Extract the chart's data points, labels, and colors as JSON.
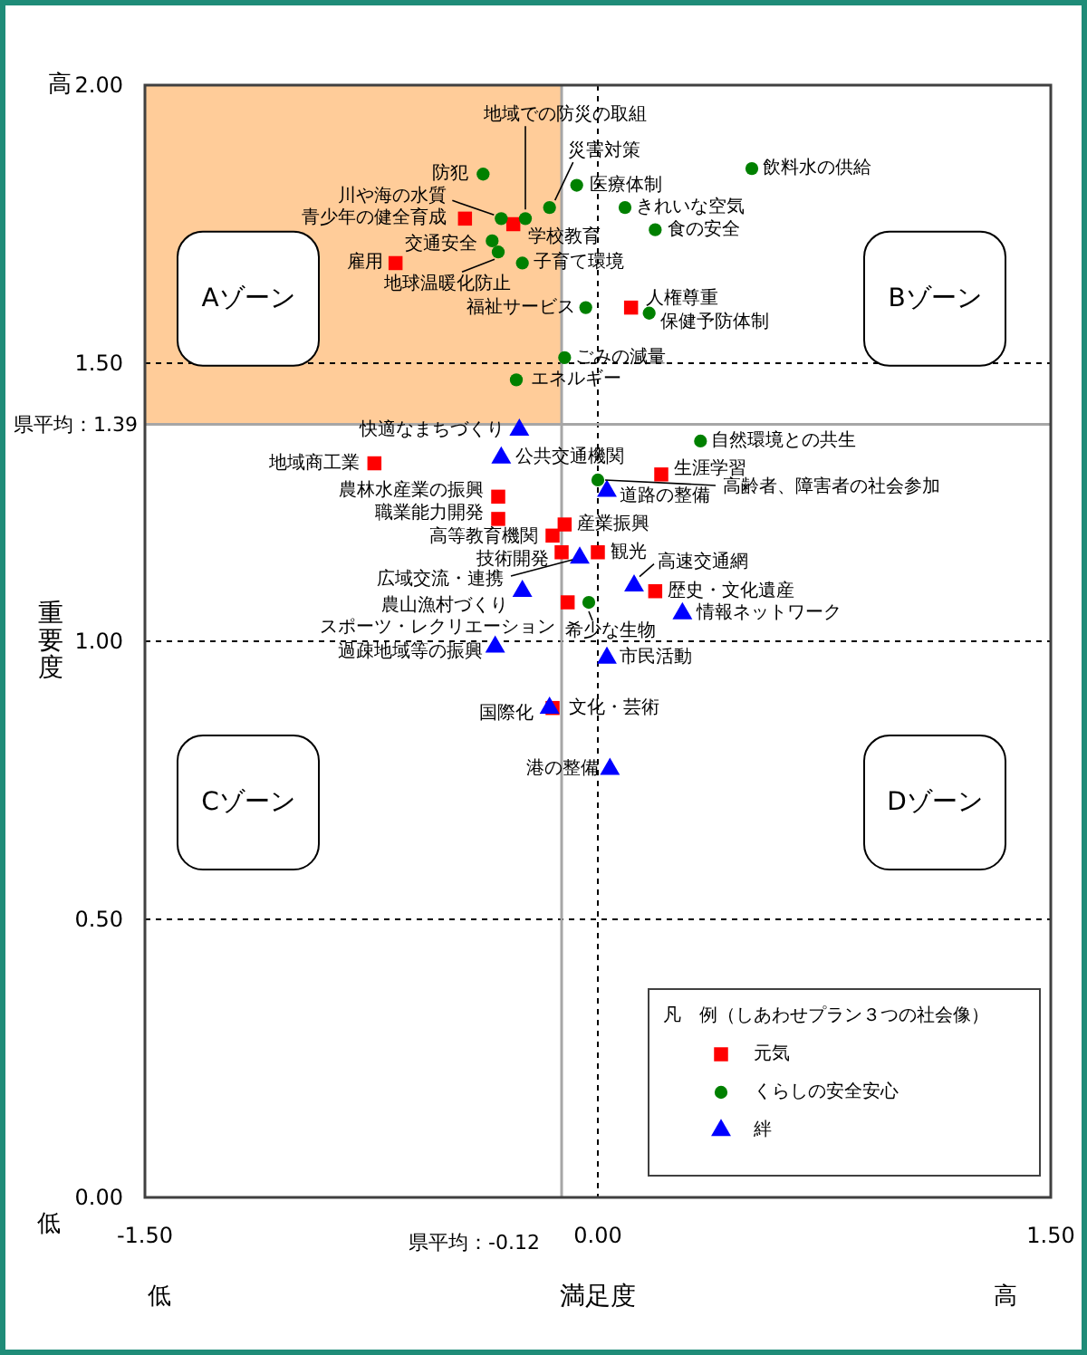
{
  "chart_data": {
    "type": "scatter",
    "xlabel": "満足度",
    "ylabel": "重要度",
    "legend_title": "凡　例（しあわせプラン３つの社会像）",
    "legend": "bottom right",
    "grid": true,
    "xlim": [
      -1.5,
      1.5
    ],
    "ylim": [
      0,
      2
    ],
    "xticks": [
      {
        "value": -1.5,
        "label": "-1.50"
      },
      {
        "value": 0,
        "label": "0.00"
      },
      {
        "value": 1.5,
        "label": "1.50"
      }
    ],
    "yticks": [
      {
        "value": 0,
        "label": "0.00"
      },
      {
        "value": 0.5,
        "label": "0.50"
      },
      {
        "value": 1,
        "label": "1.00"
      },
      {
        "value": 1.5,
        "label": "1.50"
      },
      {
        "value": 2,
        "label": "2.00"
      }
    ],
    "ref_lines": [
      {
        "axis": "y",
        "value": 1.39,
        "label": "県平均：1.39",
        "color": "#a6a6a6"
      },
      {
        "axis": "x",
        "value": -0.12,
        "label": "県平均：-0.12",
        "color": "#a6a6a6"
      }
    ],
    "bands": [
      {
        "axis": "x",
        "from": -1.5,
        "to": -0.12,
        "color": "#ffcc99"
      }
    ],
    "series": [
      {
        "name": "元気",
        "color": "#ff0000",
        "marker": "square",
        "x": [
          -0.44,
          -0.28,
          -0.67,
          0.11,
          -0.74,
          0.21,
          -0.33,
          -0.33,
          -0.11,
          -0.15,
          -0.12,
          0.0,
          0.19,
          -0.1,
          -0.15
        ],
        "values": [
          1.76,
          1.75,
          1.68,
          1.6,
          1.32,
          1.3,
          1.26,
          1.22,
          1.21,
          1.19,
          1.16,
          1.16,
          1.09,
          1.07,
          0.88
        ]
      },
      {
        "name": "くらしの安全安心",
        "color": "#008000",
        "marker": "circle",
        "x": [
          -0.38,
          0.51,
          -0.07,
          -0.16,
          0.09,
          -0.24,
          -0.32,
          0.19,
          -0.35,
          -0.33,
          -0.25,
          -0.04,
          0.17,
          -0.11,
          -0.27,
          0.34,
          0.0,
          -0.03
        ],
        "values": [
          1.84,
          1.85,
          1.82,
          1.78,
          1.78,
          1.76,
          1.76,
          1.74,
          1.72,
          1.7,
          1.68,
          1.6,
          1.59,
          1.51,
          1.47,
          1.36,
          1.29,
          1.07
        ]
      },
      {
        "name": "絆",
        "color": "#0000ff",
        "marker": "triangle",
        "x": [
          -0.26,
          -0.32,
          0.03,
          -0.06,
          0.12,
          -0.25,
          0.28,
          -0.34,
          0.03,
          -0.16,
          0.04
        ],
        "values": [
          1.38,
          1.33,
          1.27,
          1.15,
          1.1,
          1.09,
          1.05,
          0.99,
          0.97,
          0.88,
          0.77
        ]
      }
    ],
    "annotations": [
      "高",
      "Aゾーン",
      "Bゾーン",
      "Cゾーン",
      "Dゾーン",
      "低",
      "低",
      "高",
      {
        "text": "地域での防災の取組",
        "x": -0.24,
        "y": 1.76
      },
      {
        "text": "災害対策",
        "x": -0.16,
        "y": 1.78
      },
      {
        "text": "防犯",
        "x": -0.38,
        "y": 1.84
      },
      {
        "text": "医療体制",
        "x": -0.07,
        "y": 1.82
      },
      {
        "text": "飲料水の供給",
        "x": 0.51,
        "y": 1.85
      },
      {
        "text": "川や海の水質",
        "x": -0.32,
        "y": 1.76
      },
      {
        "text": "きれいな空気",
        "x": 0.09,
        "y": 1.78
      },
      {
        "text": "青少年の健全育成",
        "x": -0.44,
        "y": 1.76
      },
      {
        "text": "学校教育",
        "x": -0.28,
        "y": 1.75
      },
      {
        "text": "食の安全",
        "x": 0.19,
        "y": 1.74
      },
      {
        "text": "交通安全",
        "x": -0.35,
        "y": 1.72
      },
      {
        "text": "雇用",
        "x": -0.67,
        "y": 1.68
      },
      {
        "text": "子育て環境",
        "x": -0.25,
        "y": 1.68
      },
      {
        "text": "地球温暖化防止",
        "x": -0.33,
        "y": 1.7
      },
      {
        "text": "人権尊重",
        "x": 0.11,
        "y": 1.6
      },
      {
        "text": "保健予防体制",
        "x": 0.17,
        "y": 1.59
      },
      {
        "text": "福祉サービス",
        "x": -0.04,
        "y": 1.6
      },
      {
        "text": "ごみの減量",
        "x": -0.11,
        "y": 1.51
      },
      {
        "text": "エネルギー",
        "x": -0.27,
        "y": 1.47
      },
      {
        "text": "快適なまちづくり",
        "x": -0.26,
        "y": 1.38
      },
      {
        "text": "自然環境との共生",
        "x": 0.34,
        "y": 1.36
      },
      {
        "text": "地域商工業",
        "x": -0.74,
        "y": 1.32
      },
      {
        "text": "公共交通機関",
        "x": -0.32,
        "y": 1.33
      },
      {
        "text": "生涯学習",
        "x": 0.21,
        "y": 1.3
      },
      {
        "text": "高齢者、障害者の社会参加",
        "x": 0.0,
        "y": 1.29
      },
      {
        "text": "道路の整備",
        "x": 0.03,
        "y": 1.27
      },
      {
        "text": "農林水産業の振興",
        "x": -0.33,
        "y": 1.26
      },
      {
        "text": "職業能力開発",
        "x": -0.33,
        "y": 1.22
      },
      {
        "text": "産業振興",
        "x": -0.11,
        "y": 1.21
      },
      {
        "text": "高等教育機関",
        "x": -0.15,
        "y": 1.19
      },
      {
        "text": "技術開発",
        "x": -0.12,
        "y": 1.16
      },
      {
        "text": "観光",
        "x": 0.0,
        "y": 1.16
      },
      {
        "text": "広域交流・連携",
        "x": -0.06,
        "y": 1.15
      },
      {
        "text": "高速交通網",
        "x": 0.12,
        "y": 1.1
      },
      {
        "text": "農山漁村づくり",
        "x": -0.25,
        "y": 1.09
      },
      {
        "text": "歴史・文化遺産",
        "x": 0.19,
        "y": 1.09
      },
      {
        "text": "スポーツ・レクリエーション",
        "x": -0.1,
        "y": 1.07
      },
      {
        "text": "情報ネットワーク",
        "x": 0.28,
        "y": 1.05
      },
      {
        "text": "希少な生物",
        "x": -0.03,
        "y": 1.07
      },
      {
        "text": "過疎地域等の振興",
        "x": -0.34,
        "y": 0.99
      },
      {
        "text": "市民活動",
        "x": 0.03,
        "y": 0.97
      },
      {
        "text": "国際化",
        "x": -0.16,
        "y": 0.88
      },
      {
        "text": "文化・芸術",
        "x": -0.15,
        "y": 0.88
      },
      {
        "text": "港の整備",
        "x": 0.04,
        "y": 0.77
      }
    ]
  }
}
